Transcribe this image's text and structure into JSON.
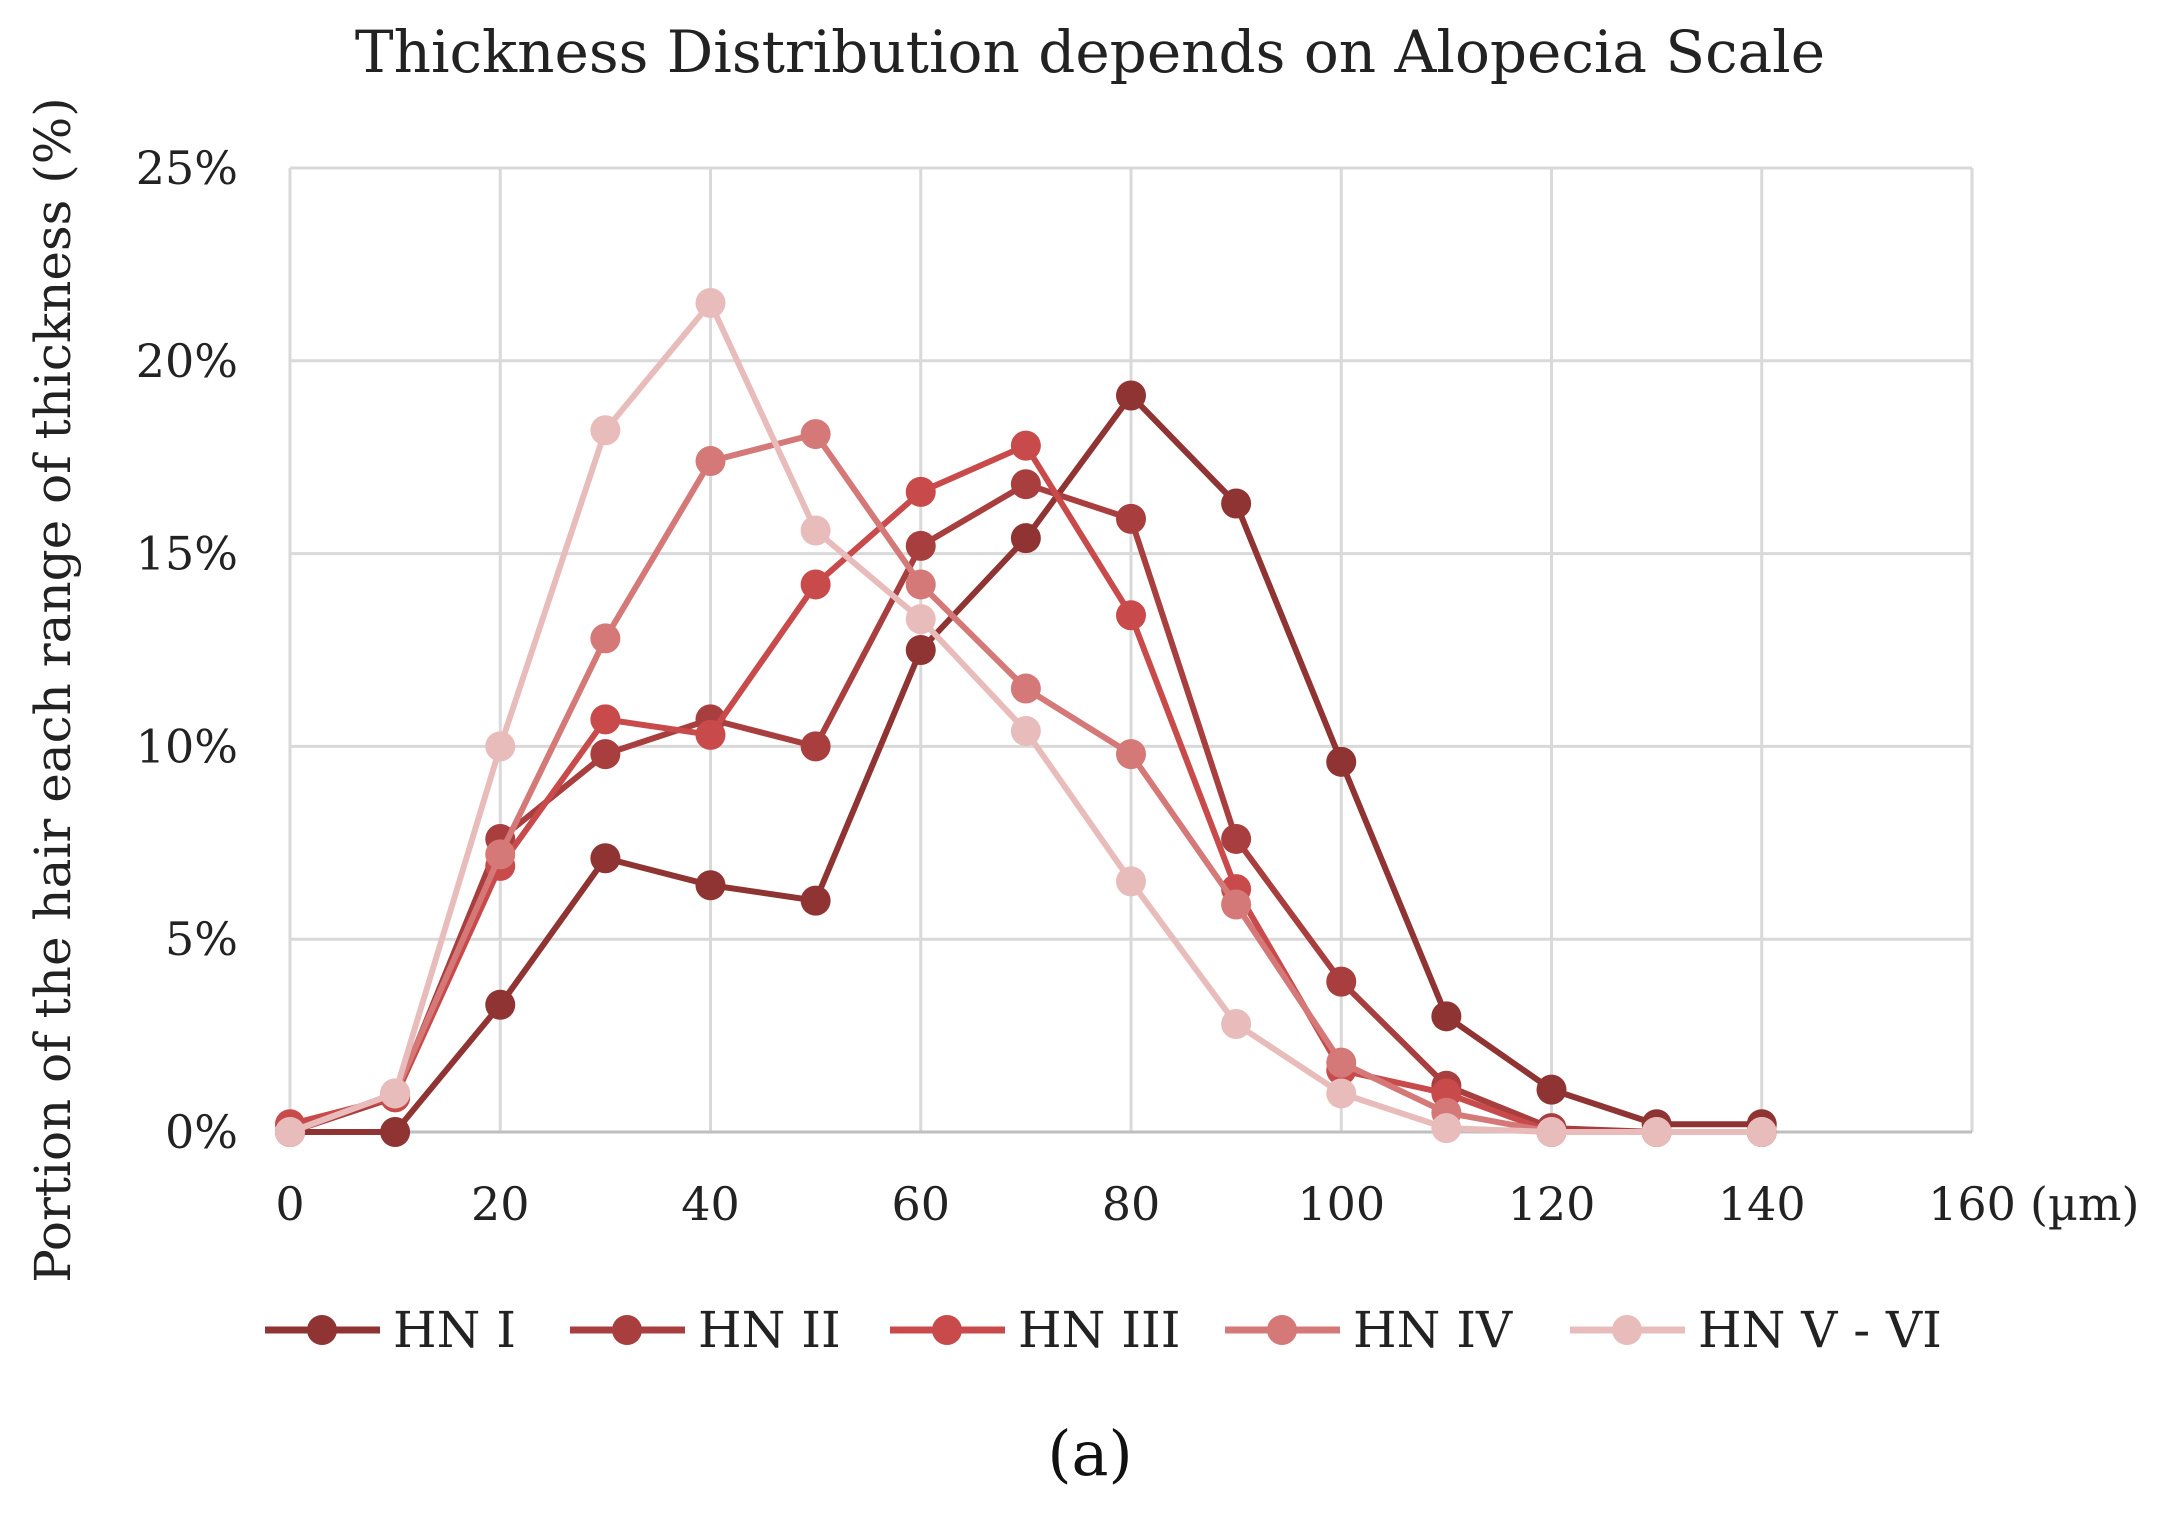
{
  "chart_data": {
    "type": "line",
    "title": "Thickness Distribution depends on Alopecia Scale",
    "xlabel": "",
    "x_unit_label": "(µm)",
    "ylabel": "Portion of the hair each range of thickness  (%)",
    "panel_label": "(a)",
    "xlim": [
      0,
      160
    ],
    "ylim": [
      0,
      25
    ],
    "x_ticks": [
      0,
      20,
      40,
      60,
      80,
      100,
      120,
      140,
      160
    ],
    "x_tick_labels": [
      "0",
      "20",
      "40",
      "60",
      "80",
      "100",
      "120",
      "140",
      "160"
    ],
    "y_ticks": [
      0,
      5,
      10,
      15,
      20,
      25
    ],
    "y_tick_labels": [
      "0%",
      "5%",
      "10%",
      "15%",
      "20%",
      "25%"
    ],
    "grid": true,
    "legend_position": "bottom",
    "series": [
      {
        "name": "HN I",
        "color": "#8f3333",
        "x": [
          0,
          10,
          20,
          30,
          40,
          50,
          60,
          70,
          80,
          90,
          100,
          110,
          120,
          130,
          140
        ],
        "values": [
          0,
          0,
          3.3,
          7.1,
          6.4,
          6.0,
          12.5,
          15.4,
          19.1,
          16.3,
          9.6,
          3.0,
          1.1,
          0.2,
          0.2
        ]
      },
      {
        "name": "HN II",
        "color": "#a83e3e",
        "x": [
          0,
          10,
          20,
          30,
          40,
          50,
          60,
          70,
          80,
          90,
          100,
          110,
          120,
          130,
          140
        ],
        "values": [
          0,
          0.9,
          7.6,
          9.8,
          10.7,
          10.0,
          15.2,
          16.8,
          15.9,
          7.6,
          3.9,
          1.2,
          0.1,
          0.0,
          0.0
        ]
      },
      {
        "name": "HN III",
        "color": "#c94a4a",
        "x": [
          0,
          10,
          20,
          30,
          40,
          50,
          60,
          70,
          80,
          90,
          100,
          110,
          120,
          130,
          140
        ],
        "values": [
          0.2,
          0.9,
          6.9,
          10.7,
          10.3,
          14.2,
          16.6,
          17.8,
          13.4,
          6.3,
          1.6,
          1.0,
          0.0,
          0.0,
          0.0
        ]
      },
      {
        "name": "HN IV",
        "color": "#d57878",
        "x": [
          0,
          10,
          20,
          30,
          40,
          50,
          60,
          70,
          80,
          90,
          100,
          110,
          120,
          130,
          140
        ],
        "values": [
          0,
          1.0,
          7.2,
          12.8,
          17.4,
          18.1,
          14.2,
          11.5,
          9.8,
          5.9,
          1.8,
          0.5,
          0.0,
          0.0,
          0.0
        ]
      },
      {
        "name": "HN V - VI",
        "color": "#e9bcbc",
        "x": [
          0,
          10,
          20,
          30,
          40,
          50,
          60,
          70,
          80,
          90,
          100,
          110,
          120,
          130,
          140
        ],
        "values": [
          0,
          1.0,
          10.0,
          18.2,
          21.5,
          15.6,
          13.3,
          10.4,
          6.5,
          2.8,
          1.0,
          0.1,
          0.0,
          0.0,
          0.0
        ]
      }
    ]
  }
}
